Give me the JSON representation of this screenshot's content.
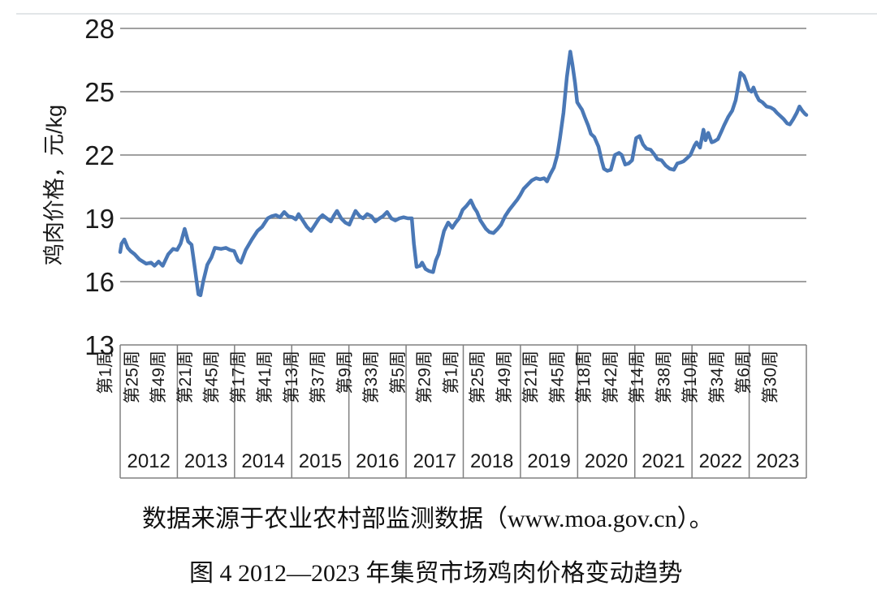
{
  "figure": {
    "source_note": "数据来源于农业农村部监测数据（www.moa.gov.cn）。",
    "title": "图 4 2012—2023 年集贸市场鸡肉价格变动趋势"
  },
  "chart_data": {
    "type": "line",
    "title": "图 4 2012—2023 年集贸市场鸡肉价格变动趋势",
    "source_note": "数据来源于农业农村部监测数据（www.moa.gov.cn）。",
    "ylabel": "鸡肉价格，元/kg",
    "xlabel": "",
    "ylim": [
      13,
      28
    ],
    "yticks": [
      28,
      25,
      22,
      19,
      16,
      13
    ],
    "grid": "horizontal",
    "legend_position": "none",
    "line_color": "#4a78b6",
    "grid_color": "#808080",
    "x_axis": {
      "week_labels": [
        "第1周",
        "第25周",
        "第49周",
        "第21周",
        "第45周",
        "第17周",
        "第41周",
        "第13周",
        "第37周",
        "第9周",
        "第33周",
        "第5周",
        "第29周",
        "第1周",
        "第25周",
        "第49周",
        "第21周",
        "第45周",
        "第18周",
        "第42周",
        "第14周",
        "第38周",
        "第10周",
        "第34周",
        "第6周",
        "第30周"
      ],
      "year_labels": [
        "2012",
        "2013",
        "2014",
        "2015",
        "2016",
        "2017",
        "2018",
        "2019",
        "2020",
        "2021",
        "2022",
        "2023"
      ]
    },
    "series": [
      {
        "name": "集贸市场鸡肉价格",
        "unit": "元/kg",
        "points": [
          [
            0.0,
            17.4
          ],
          [
            0.002,
            17.8
          ],
          [
            0.006,
            18.0
          ],
          [
            0.011,
            17.6
          ],
          [
            0.015,
            17.45
          ],
          [
            0.021,
            17.3
          ],
          [
            0.028,
            17.05
          ],
          [
            0.038,
            16.85
          ],
          [
            0.045,
            16.9
          ],
          [
            0.05,
            16.75
          ],
          [
            0.056,
            16.95
          ],
          [
            0.062,
            16.75
          ],
          [
            0.07,
            17.3
          ],
          [
            0.077,
            17.55
          ],
          [
            0.083,
            17.5
          ],
          [
            0.088,
            17.8
          ],
          [
            0.094,
            18.5
          ],
          [
            0.099,
            17.9
          ],
          [
            0.104,
            17.75
          ],
          [
            0.109,
            16.6
          ],
          [
            0.114,
            15.4
          ],
          [
            0.117,
            15.35
          ],
          [
            0.121,
            16.0
          ],
          [
            0.127,
            16.8
          ],
          [
            0.133,
            17.15
          ],
          [
            0.138,
            17.6
          ],
          [
            0.147,
            17.55
          ],
          [
            0.154,
            17.6
          ],
          [
            0.16,
            17.5
          ],
          [
            0.166,
            17.45
          ],
          [
            0.172,
            17.0
          ],
          [
            0.176,
            16.9
          ],
          [
            0.183,
            17.5
          ],
          [
            0.192,
            18.0
          ],
          [
            0.2,
            18.4
          ],
          [
            0.207,
            18.6
          ],
          [
            0.215,
            19.0
          ],
          [
            0.221,
            19.1
          ],
          [
            0.227,
            19.15
          ],
          [
            0.233,
            19.05
          ],
          [
            0.239,
            19.3
          ],
          [
            0.245,
            19.1
          ],
          [
            0.251,
            19.05
          ],
          [
            0.256,
            18.95
          ],
          [
            0.26,
            19.2
          ],
          [
            0.266,
            18.9
          ],
          [
            0.272,
            18.6
          ],
          [
            0.278,
            18.4
          ],
          [
            0.284,
            18.7
          ],
          [
            0.29,
            19.0
          ],
          [
            0.295,
            19.15
          ],
          [
            0.301,
            19.0
          ],
          [
            0.307,
            18.85
          ],
          [
            0.311,
            19.1
          ],
          [
            0.316,
            19.35
          ],
          [
            0.322,
            19.0
          ],
          [
            0.328,
            18.8
          ],
          [
            0.334,
            18.7
          ],
          [
            0.338,
            19.0
          ],
          [
            0.343,
            19.35
          ],
          [
            0.349,
            19.1
          ],
          [
            0.354,
            19.0
          ],
          [
            0.36,
            19.2
          ],
          [
            0.366,
            19.1
          ],
          [
            0.372,
            18.85
          ],
          [
            0.378,
            19.0
          ],
          [
            0.383,
            19.1
          ],
          [
            0.389,
            19.3
          ],
          [
            0.395,
            19.0
          ],
          [
            0.401,
            18.9
          ],
          [
            0.407,
            19.0
          ],
          [
            0.413,
            19.05
          ],
          [
            0.419,
            19.0
          ],
          [
            0.425,
            19.0
          ],
          [
            0.428,
            17.8
          ],
          [
            0.432,
            16.7
          ],
          [
            0.437,
            16.75
          ],
          [
            0.44,
            16.9
          ],
          [
            0.445,
            16.6
          ],
          [
            0.45,
            16.5
          ],
          [
            0.456,
            16.45
          ],
          [
            0.46,
            17.0
          ],
          [
            0.464,
            17.3
          ],
          [
            0.469,
            18.0
          ],
          [
            0.472,
            18.4
          ],
          [
            0.478,
            18.8
          ],
          [
            0.484,
            18.55
          ],
          [
            0.489,
            18.8
          ],
          [
            0.494,
            19.0
          ],
          [
            0.499,
            19.4
          ],
          [
            0.505,
            19.6
          ],
          [
            0.511,
            19.85
          ],
          [
            0.516,
            19.5
          ],
          [
            0.52,
            19.3
          ],
          [
            0.525,
            18.9
          ],
          [
            0.533,
            18.5
          ],
          [
            0.538,
            18.35
          ],
          [
            0.544,
            18.3
          ],
          [
            0.55,
            18.5
          ],
          [
            0.555,
            18.7
          ],
          [
            0.561,
            19.1
          ],
          [
            0.567,
            19.4
          ],
          [
            0.573,
            19.65
          ],
          [
            0.579,
            19.9
          ],
          [
            0.583,
            20.1
          ],
          [
            0.588,
            20.4
          ],
          [
            0.594,
            20.6
          ],
          [
            0.6,
            20.8
          ],
          [
            0.606,
            20.9
          ],
          [
            0.612,
            20.85
          ],
          [
            0.618,
            20.9
          ],
          [
            0.622,
            20.75
          ],
          [
            0.627,
            21.1
          ],
          [
            0.632,
            21.4
          ],
          [
            0.637,
            22.0
          ],
          [
            0.641,
            22.8
          ],
          [
            0.646,
            24.0
          ],
          [
            0.651,
            25.7
          ],
          [
            0.656,
            26.9
          ],
          [
            0.659,
            26.3
          ],
          [
            0.663,
            25.4
          ],
          [
            0.666,
            24.5
          ],
          [
            0.67,
            24.3
          ],
          [
            0.673,
            24.15
          ],
          [
            0.677,
            23.8
          ],
          [
            0.682,
            23.4
          ],
          [
            0.686,
            23.0
          ],
          [
            0.691,
            22.85
          ],
          [
            0.697,
            22.4
          ],
          [
            0.702,
            21.7
          ],
          [
            0.705,
            21.35
          ],
          [
            0.71,
            21.25
          ],
          [
            0.715,
            21.3
          ],
          [
            0.721,
            22.0
          ],
          [
            0.727,
            22.1
          ],
          [
            0.731,
            22.0
          ],
          [
            0.736,
            21.55
          ],
          [
            0.741,
            21.6
          ],
          [
            0.746,
            21.75
          ],
          [
            0.752,
            22.8
          ],
          [
            0.757,
            22.9
          ],
          [
            0.762,
            22.5
          ],
          [
            0.767,
            22.3
          ],
          [
            0.773,
            22.25
          ],
          [
            0.779,
            22.0
          ],
          [
            0.783,
            21.8
          ],
          [
            0.789,
            21.75
          ],
          [
            0.795,
            21.5
          ],
          [
            0.801,
            21.35
          ],
          [
            0.807,
            21.3
          ],
          [
            0.812,
            21.6
          ],
          [
            0.817,
            21.65
          ],
          [
            0.821,
            21.7
          ],
          [
            0.826,
            21.85
          ],
          [
            0.831,
            22.0
          ],
          [
            0.837,
            22.45
          ],
          [
            0.84,
            22.6
          ],
          [
            0.845,
            22.35
          ],
          [
            0.85,
            23.2
          ],
          [
            0.853,
            22.7
          ],
          [
            0.857,
            23.05
          ],
          [
            0.862,
            22.6
          ],
          [
            0.866,
            22.65
          ],
          [
            0.871,
            22.75
          ],
          [
            0.876,
            23.1
          ],
          [
            0.88,
            23.4
          ],
          [
            0.886,
            23.8
          ],
          [
            0.892,
            24.1
          ],
          [
            0.897,
            24.6
          ],
          [
            0.901,
            25.3
          ],
          [
            0.904,
            25.9
          ],
          [
            0.909,
            25.75
          ],
          [
            0.912,
            25.5
          ],
          [
            0.916,
            25.1
          ],
          [
            0.92,
            25.0
          ],
          [
            0.923,
            25.2
          ],
          [
            0.927,
            24.85
          ],
          [
            0.931,
            24.6
          ],
          [
            0.936,
            24.5
          ],
          [
            0.942,
            24.3
          ],
          [
            0.948,
            24.25
          ],
          [
            0.953,
            24.15
          ],
          [
            0.957,
            24.0
          ],
          [
            0.962,
            23.85
          ],
          [
            0.967,
            23.7
          ],
          [
            0.972,
            23.5
          ],
          [
            0.976,
            23.45
          ],
          [
            0.981,
            23.7
          ],
          [
            0.986,
            24.0
          ],
          [
            0.99,
            24.3
          ],
          [
            0.994,
            24.1
          ],
          [
            0.998,
            23.95
          ],
          [
            1.0,
            23.9
          ]
        ]
      }
    ]
  }
}
